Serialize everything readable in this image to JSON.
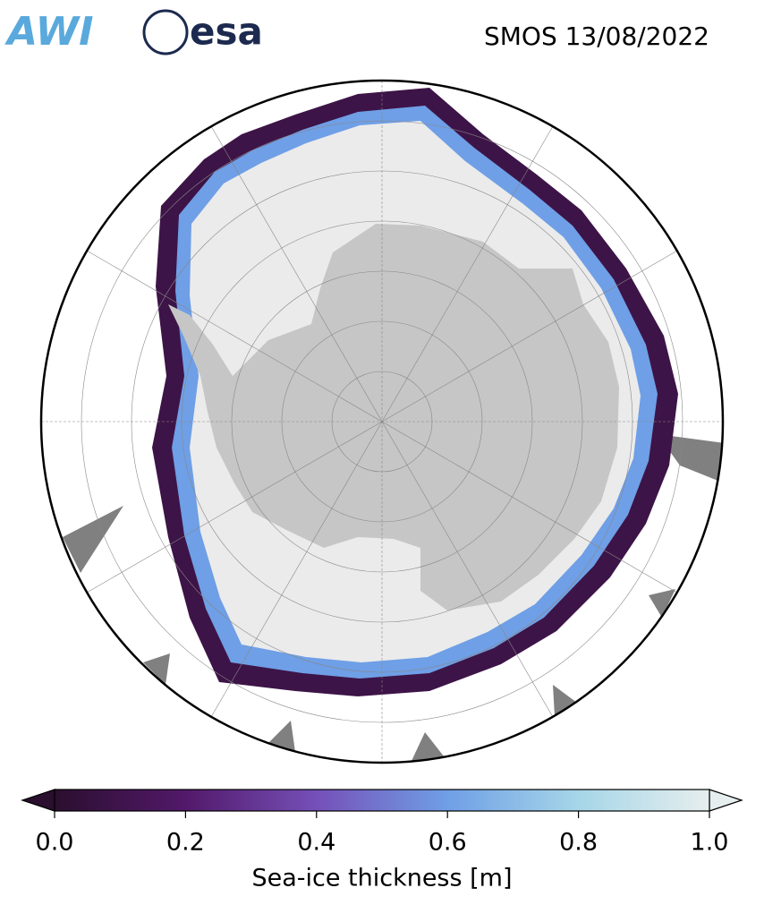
{
  "header": {
    "logos": [
      "AWI",
      "esa"
    ],
    "title": "SMOS 13/08/2022"
  },
  "colorbar": {
    "type": "colorbar",
    "label": "Sea-ice thickness [m]",
    "xlim": [
      0,
      1
    ],
    "xticks": [
      {
        "value": 0,
        "label": "0.0"
      },
      0.2,
      0.4,
      0.6,
      0.8,
      {
        "value": 1,
        "label": "1.0"
      }
    ],
    "colors": [
      "#2b0f2f",
      "#52196a",
      "#7550b8",
      "#6f9fe6",
      "#a6d6e8",
      "#e6eeee"
    ]
  }
}
